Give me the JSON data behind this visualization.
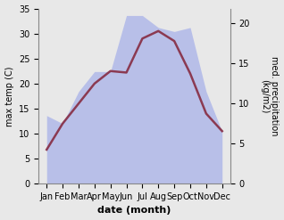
{
  "months": [
    "Jan",
    "Feb",
    "Mar",
    "Apr",
    "May",
    "Jun",
    "Jul",
    "Aug",
    "Sep",
    "Oct",
    "Nov",
    "Dec"
  ],
  "month_x": [
    0,
    1,
    2,
    3,
    4,
    5,
    6,
    7,
    8,
    9,
    10,
    11
  ],
  "temp_max": [
    6.8,
    12.0,
    16.0,
    20.0,
    22.5,
    22.2,
    29.0,
    30.5,
    28.5,
    22.0,
    14.0,
    10.5
  ],
  "precip": [
    8.5,
    7.5,
    11.5,
    14.0,
    14.0,
    21.0,
    21.0,
    19.5,
    19.0,
    19.5,
    11.5,
    6.5
  ],
  "temp_ylim": [
    0,
    35
  ],
  "precip_ylim": [
    0,
    21.875
  ],
  "temp_yticks": [
    0,
    5,
    10,
    15,
    20,
    25,
    30,
    35
  ],
  "precip_yticks": [
    0,
    5,
    10,
    15,
    20
  ],
  "ylabel_left": "max temp (C)",
  "ylabel_right": "med. precipitation\n(kg/m2)",
  "xlabel": "date (month)",
  "line_color": "#8B3A52",
  "fill_color": "#b0b8e8",
  "fill_alpha": 0.85,
  "bg_color": "#e8e8e8",
  "plot_bg_color": "#e8e8e8",
  "line_width": 1.8
}
